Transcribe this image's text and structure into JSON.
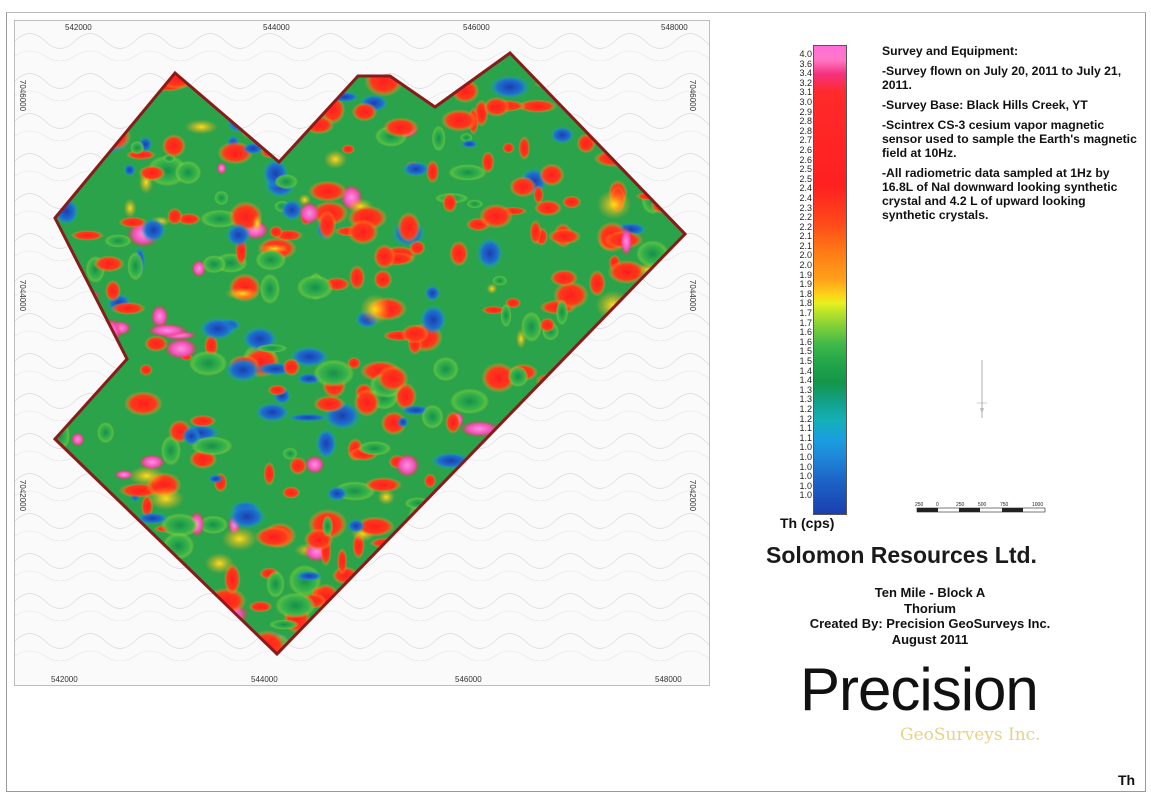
{
  "map": {
    "x_ticks_top": [
      "542000",
      "544000",
      "546000",
      "548000"
    ],
    "x_ticks_bottom": [
      "542000",
      "544000",
      "546000",
      "548000"
    ],
    "y_ticks_left": [
      "7046000",
      "7044000",
      "7042000"
    ],
    "y_ticks_right": [
      "7046000",
      "7044000",
      "7042000"
    ]
  },
  "legend": {
    "labels": [
      "4.0",
      "3.6",
      "3.4",
      "3.2",
      "3.1",
      "3.0",
      "2.9",
      "2.8",
      "2.8",
      "2.7",
      "2.6",
      "2.6",
      "2.5",
      "2.5",
      "2.4",
      "2.4",
      "2.3",
      "2.2",
      "2.2",
      "2.1",
      "2.1",
      "2.0",
      "2.0",
      "1.9",
      "1.9",
      "1.8",
      "1.8",
      "1.7",
      "1.7",
      "1.6",
      "1.6",
      "1.5",
      "1.5",
      "1.4",
      "1.4",
      "1.3",
      "1.3",
      "1.2",
      "1.2",
      "1.1",
      "1.1",
      "1.0",
      "1.0",
      "1.0",
      "1.0",
      "1.0",
      "1.0"
    ],
    "unit": "Th (cps)",
    "colors": {
      "high": "#ff6fd8",
      "mid_high": "#ff2020",
      "mid": "#ffd018",
      "mid_low": "#21a449",
      "low": "#1a3fae"
    }
  },
  "notes": {
    "title": "Survey and Equipment:",
    "items": [
      "-Survey flown on July 20, 2011 to July 21, 2011.",
      "-Survey Base: Black Hills Creek, YT",
      "-Scintrex CS-3 cesium vapor magnetic sensor used to sample the Earth's magnetic field at 10Hz.",
      "-All radiometric data sampled at 1Hz by 16.8L of NaI downward looking synthetic crystal and 4.2 L of upward looking synthetic crystals."
    ]
  },
  "scale": {
    "labels": [
      "250",
      "0",
      "250",
      "500",
      "750",
      "1000"
    ]
  },
  "company": "Solomon Resources Ltd.",
  "info": {
    "line1": "Ten Mile - Block A",
    "line2": "Thorium",
    "line3": "Created By: Precision GeoSurveys Inc.",
    "line4": "August 2011"
  },
  "logo": {
    "main": "Precision",
    "sub": "GeoSurveys Inc."
  },
  "corner_label": "Th"
}
